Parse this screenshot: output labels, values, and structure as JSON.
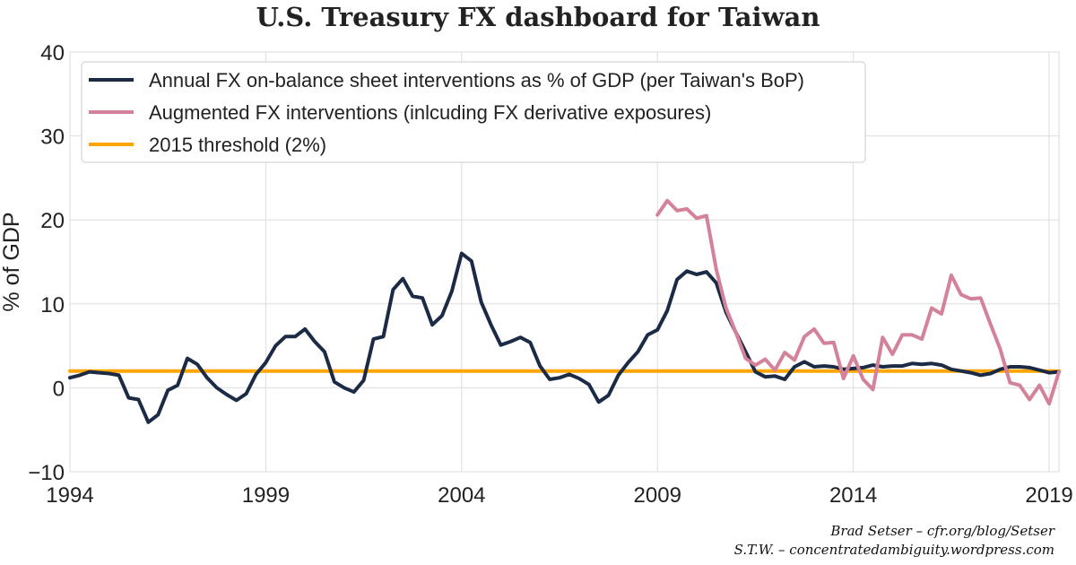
{
  "chart_data": {
    "type": "line",
    "title": "U.S. Treasury FX dashboard for Taiwan",
    "ylabel": "% of GDP",
    "xlabel": "",
    "xlim": [
      1994,
      2019.25
    ],
    "ylim": [
      -10,
      40
    ],
    "xticks": [
      1994,
      1999,
      2004,
      2009,
      2014,
      2019
    ],
    "yticks": [
      -10,
      0,
      10,
      20,
      30,
      40
    ],
    "grid": true,
    "legend_position": "top-left",
    "series": [
      {
        "name": "Annual FX on-balance sheet interventions as % of GDP (per Taiwan's BoP)",
        "color": "#1b2a45",
        "x": [
          1994.0,
          1994.25,
          1994.5,
          1994.75,
          1995.0,
          1995.25,
          1995.5,
          1995.75,
          1996.0,
          1996.25,
          1996.5,
          1996.75,
          1997.0,
          1997.25,
          1997.5,
          1997.75,
          1998.0,
          1998.25,
          1998.5,
          1998.75,
          1999.0,
          1999.25,
          1999.5,
          1999.75,
          2000.0,
          2000.25,
          2000.5,
          2000.75,
          2001.0,
          2001.25,
          2001.5,
          2001.75,
          2002.0,
          2002.25,
          2002.5,
          2002.75,
          2003.0,
          2003.25,
          2003.5,
          2003.75,
          2004.0,
          2004.25,
          2004.5,
          2004.75,
          2005.0,
          2005.25,
          2005.5,
          2005.75,
          2006.0,
          2006.25,
          2006.5,
          2006.75,
          2007.0,
          2007.25,
          2007.5,
          2007.75,
          2008.0,
          2008.25,
          2008.5,
          2008.75,
          2009.0,
          2009.25,
          2009.5,
          2009.75,
          2010.0,
          2010.25,
          2010.5,
          2010.75,
          2011.0,
          2011.25,
          2011.5,
          2011.75,
          2012.0,
          2012.25,
          2012.5,
          2012.75,
          2013.0,
          2013.25,
          2013.5,
          2013.75,
          2014.0,
          2014.25,
          2014.5,
          2014.75,
          2015.0,
          2015.25,
          2015.5,
          2015.75,
          2016.0,
          2016.25,
          2016.5,
          2016.75,
          2017.0,
          2017.25,
          2017.5,
          2017.75,
          2018.0,
          2018.25,
          2018.5,
          2018.75,
          2019.0,
          2019.25
        ],
        "y": [
          1.2,
          1.5,
          1.9,
          1.8,
          1.7,
          1.5,
          -1.2,
          -1.4,
          -4.1,
          -3.2,
          -0.3,
          0.3,
          3.5,
          2.8,
          1.2,
          0.0,
          -0.8,
          -1.5,
          -0.7,
          1.6,
          3.0,
          5.0,
          6.1,
          6.1,
          7.0,
          5.5,
          4.3,
          0.7,
          0.0,
          -0.5,
          0.9,
          5.8,
          6.1,
          11.7,
          13.0,
          10.9,
          10.7,
          7.5,
          8.6,
          11.5,
          16.0,
          15.1,
          10.2,
          7.5,
          5.1,
          5.5,
          6.0,
          5.4,
          2.6,
          1.0,
          1.2,
          1.6,
          1.1,
          0.4,
          -1.7,
          -0.9,
          1.5,
          3.0,
          4.3,
          6.3,
          6.9,
          9.2,
          12.9,
          13.9,
          13.5,
          13.8,
          12.5,
          9.0,
          6.6,
          4.3,
          1.9,
          1.3,
          1.4,
          1.0,
          2.5,
          3.1,
          2.5,
          2.6,
          2.5,
          2.2,
          2.3,
          2.4,
          2.7,
          2.5,
          2.6,
          2.6,
          2.9,
          2.8,
          2.9,
          2.7,
          2.2,
          2.0,
          1.8,
          1.5,
          1.7,
          2.2,
          2.5,
          2.5,
          2.4,
          2.1,
          1.8,
          1.9
        ]
      },
      {
        "name": "Augmented FX interventions (inlcuding FX derivative exposures)",
        "color": "#d4829a",
        "x": [
          2009.0,
          2009.25,
          2009.5,
          2009.75,
          2010.0,
          2010.25,
          2010.5,
          2010.75,
          2011.0,
          2011.25,
          2011.5,
          2011.75,
          2012.0,
          2012.25,
          2012.5,
          2012.75,
          2013.0,
          2013.25,
          2013.5,
          2013.75,
          2014.0,
          2014.25,
          2014.5,
          2014.75,
          2015.0,
          2015.25,
          2015.5,
          2015.75,
          2016.0,
          2016.25,
          2016.5,
          2016.75,
          2017.0,
          2017.25,
          2017.5,
          2017.75,
          2018.0,
          2018.25,
          2018.5,
          2018.75,
          2019.0,
          2019.25
        ],
        "y": [
          20.6,
          22.3,
          21.1,
          21.3,
          20.2,
          20.5,
          14.1,
          9.5,
          6.6,
          3.5,
          2.7,
          3.4,
          2.1,
          4.2,
          3.3,
          6.1,
          7.0,
          5.3,
          5.4,
          1.1,
          3.8,
          1.0,
          -0.2,
          6.0,
          4.0,
          6.3,
          6.3,
          5.8,
          9.5,
          8.8,
          13.4,
          11.1,
          10.6,
          10.7,
          7.6,
          4.6,
          0.6,
          0.3,
          -1.4,
          0.3,
          -1.9,
          1.9
        ]
      },
      {
        "name": "2015 threshold (2%)",
        "color": "#ffa500",
        "x": [
          1994,
          2019.25
        ],
        "y": [
          2,
          2
        ]
      }
    ]
  },
  "credits": {
    "line1": "Brad Setser – cfr.org/blog/Setser",
    "line2": "S.T.W. – concentratedambiguity.wordpress.com"
  }
}
